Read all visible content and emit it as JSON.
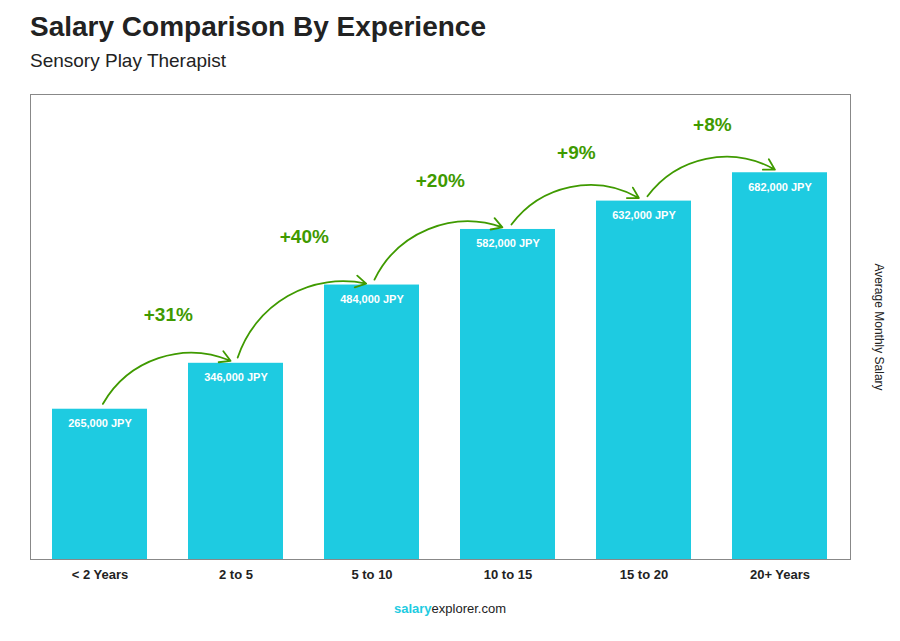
{
  "chart_data": {
    "type": "bar",
    "title": "Salary Comparison By Experience",
    "subtitle": "Sensory Play Therapist",
    "ylabel": "Average Monthly Salary",
    "categories": [
      "< 2 Years",
      "2 to 5",
      "5 to 10",
      "10 to 15",
      "15 to 20",
      "20+ Years"
    ],
    "values": [
      265000,
      346000,
      484000,
      582000,
      632000,
      682000
    ],
    "value_labels": [
      "265,000 JPY",
      "346,000 JPY",
      "484,000 JPY",
      "582,000 JPY",
      "632,000 JPY",
      "682,000 JPY"
    ],
    "data_labels": true,
    "color": "#1ECBE1",
    "ylim": [
      0,
      820000
    ],
    "tick_labels": "x",
    "grid": false,
    "annotations": [
      "+31%",
      "+40%",
      "+20%",
      "+9%",
      "+8%"
    ],
    "footer": [
      "salary",
      "explorer.com"
    ]
  }
}
